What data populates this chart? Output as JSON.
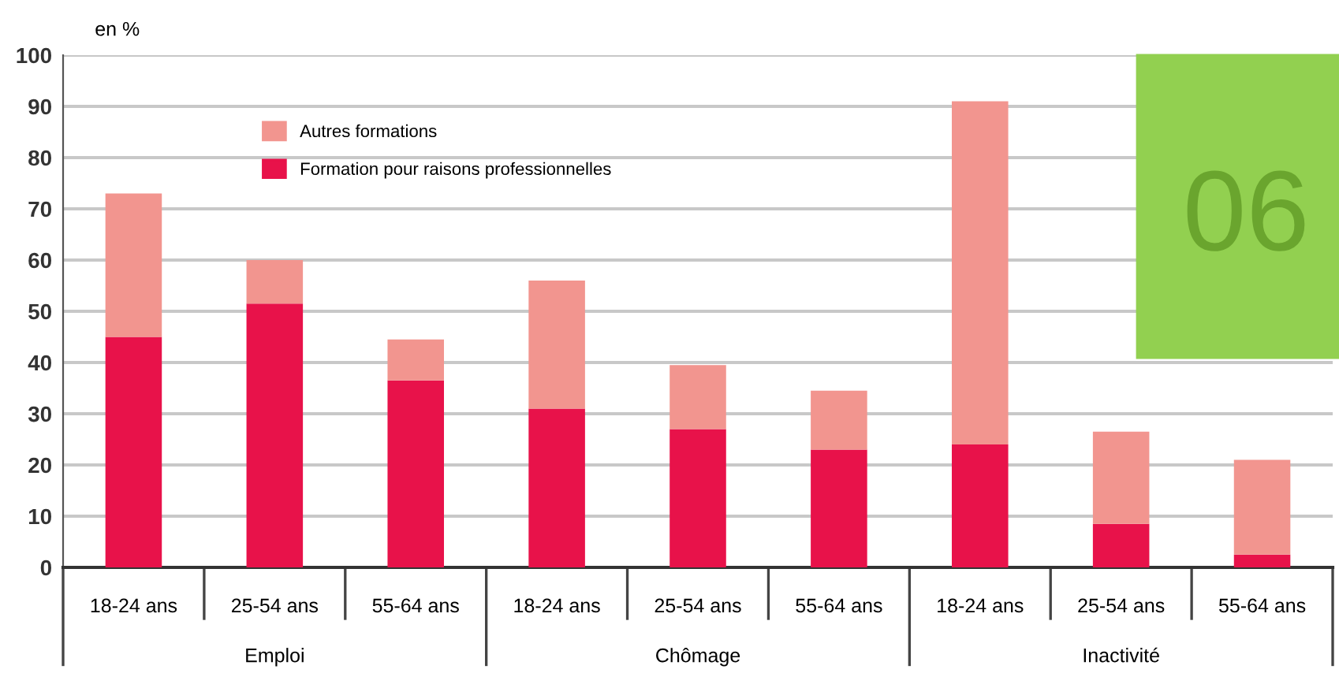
{
  "chart_data": {
    "type": "bar",
    "stacked": true,
    "ylabel": "en %",
    "categories": [
      "18-24 ans",
      "25-54 ans",
      "55-64 ans",
      "18-24 ans",
      "25-54 ans",
      "55-64 ans",
      "18-24 ans",
      "25-54 ans",
      "55-64 ans"
    ],
    "series": [
      {
        "name": "Formation pour raisons professionnelles",
        "color": "#e8124a",
        "values": [
          45,
          51.5,
          36.5,
          31,
          27,
          23,
          24,
          8.5,
          2.5
        ]
      },
      {
        "name": "Autres formations",
        "color": "#f2958f",
        "values": [
          28,
          8.5,
          8,
          25,
          12.5,
          11.5,
          67,
          18,
          18.5
        ]
      }
    ],
    "ylim": [
      0,
      100
    ],
    "yticks": [
      0,
      10,
      20,
      30,
      40,
      50,
      60,
      70,
      80,
      90,
      100
    ],
    "grid": "y",
    "legend": "top left",
    "annotations": [
      "Emploi",
      "Chômage",
      "Inactivité",
      "06"
    ]
  }
}
